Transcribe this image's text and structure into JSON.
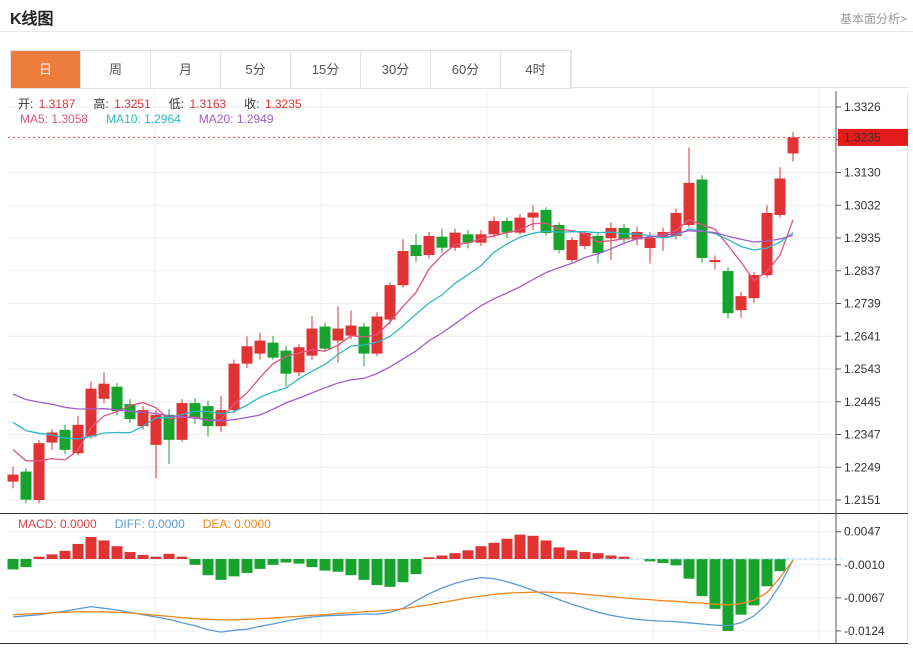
{
  "header": {
    "title": "K线图",
    "link": "基本面分析>"
  },
  "tabs": {
    "items": [
      "日",
      "周",
      "月",
      "5分",
      "15分",
      "30分",
      "60分",
      "4时"
    ],
    "selected_index": 0
  },
  "info": {
    "ohlc": [
      {
        "label": "开:",
        "value": "1.3187"
      },
      {
        "label": "高:",
        "value": "1.3251"
      },
      {
        "label": "低:",
        "value": "1.3163"
      },
      {
        "label": "收:",
        "value": "1.3235"
      }
    ],
    "ma": [
      {
        "label": "MA5:",
        "value": "1.3058",
        "color": "#e0547e"
      },
      {
        "label": "MA10:",
        "value": "1.2964",
        "color": "#2eb8c5"
      },
      {
        "label": "MA20:",
        "value": "1.2949",
        "color": "#a05dc8"
      }
    ]
  },
  "colors": {
    "up": "#e13333",
    "down": "#17a32d",
    "ma5": "#e0547e",
    "ma10": "#2eb8c5",
    "ma20": "#a05dc8",
    "diff": "#5b9bd5",
    "dea": "#f0861e",
    "macd_label": "#d94545",
    "tab_accent": "#ee7d3d",
    "current_price_bg": "#e31b1b",
    "grid": "#ededed",
    "axis": "#555555",
    "dotted_current": "#e34444",
    "zero_dash": "#8fd3e8"
  },
  "chart_data": {
    "type": "candlestick_with_macd",
    "title": "K线图",
    "legend": [
      "MA5",
      "MA10",
      "MA20"
    ],
    "ma_periods": [
      5,
      10,
      20
    ],
    "price_axis": {
      "tick_labels": [
        "1.3326",
        null,
        "1.3130",
        "1.3032",
        "1.2935",
        "1.2837",
        "1.2739",
        "1.2641",
        "1.2543",
        "1.2445",
        "1.2347",
        "1.2249",
        "1.2151"
      ],
      "tick_step": 0.0098,
      "top_value": 1.3326,
      "current_price": "1.3235"
    },
    "candles": [
      [
        1.2205,
        1.225,
        1.2185,
        1.2226
      ],
      [
        1.2235,
        1.2245,
        1.214,
        1.2151
      ],
      [
        1.215,
        1.233,
        1.214,
        1.232
      ],
      [
        1.2322,
        1.2362,
        1.23,
        1.2352
      ],
      [
        1.236,
        1.2375,
        1.2288,
        1.23
      ],
      [
        1.229,
        1.2402,
        1.2283,
        1.2375
      ],
      [
        1.234,
        1.2505,
        1.2333,
        1.2483
      ],
      [
        1.2453,
        1.2532,
        1.244,
        1.2498
      ],
      [
        1.2489,
        1.25,
        1.2404,
        1.2416
      ],
      [
        1.2437,
        1.2452,
        1.238,
        1.2392
      ],
      [
        1.2371,
        1.2432,
        1.236,
        1.2419
      ],
      [
        1.2315,
        1.242,
        1.2215,
        1.2405
      ],
      [
        1.2405,
        1.2422,
        1.2258,
        1.233
      ],
      [
        1.233,
        1.2452,
        1.2324,
        1.244
      ],
      [
        1.244,
        1.2455,
        1.2378,
        1.2395
      ],
      [
        1.2431,
        1.2447,
        1.234,
        1.2371
      ],
      [
        1.2371,
        1.2462,
        1.2354,
        1.2419
      ],
      [
        1.2419,
        1.257,
        1.241,
        1.2558
      ],
      [
        1.2558,
        1.264,
        1.2545,
        1.261
      ],
      [
        1.2588,
        1.265,
        1.257,
        1.2627
      ],
      [
        1.2621,
        1.2641,
        1.257,
        1.2576
      ],
      [
        1.2597,
        1.2612,
        1.249,
        1.2528
      ],
      [
        1.2532,
        1.2616,
        1.252,
        1.2607
      ],
      [
        1.2582,
        1.27,
        1.257,
        1.2663
      ],
      [
        1.2669,
        1.2681,
        1.2595,
        1.2603
      ],
      [
        1.2627,
        1.273,
        1.256,
        1.2663
      ],
      [
        1.2642,
        1.2717,
        1.263,
        1.2672
      ],
      [
        1.2669,
        1.268,
        1.255,
        1.2588
      ],
      [
        1.2588,
        1.2712,
        1.258,
        1.2699
      ],
      [
        1.269,
        1.2802,
        1.2675,
        1.2793
      ],
      [
        1.2793,
        1.293,
        1.2785,
        1.2895
      ],
      [
        1.2913,
        1.2946,
        1.2862,
        1.288
      ],
      [
        1.2883,
        1.2952,
        1.2872,
        1.294
      ],
      [
        1.2938,
        1.2962,
        1.289,
        1.2905
      ],
      [
        1.2905,
        1.2962,
        1.2895,
        1.295
      ],
      [
        1.2945,
        1.2958,
        1.2903,
        1.292
      ],
      [
        1.292,
        1.2958,
        1.291,
        1.2945
      ],
      [
        1.2945,
        1.2999,
        1.2935,
        1.2985
      ],
      [
        1.2985,
        1.2996,
        1.2934,
        1.295
      ],
      [
        1.295,
        1.3006,
        1.2944,
        1.2995
      ],
      [
        1.2995,
        1.3032,
        1.2958,
        1.301
      ],
      [
        1.3018,
        1.3026,
        1.294,
        1.2949
      ],
      [
        1.2973,
        1.2981,
        1.2888,
        1.2898
      ],
      [
        1.2868,
        1.2936,
        1.286,
        1.2928
      ],
      [
        1.291,
        1.2956,
        1.29,
        1.2949
      ],
      [
        1.294,
        1.2951,
        1.2858,
        1.2889
      ],
      [
        1.2933,
        1.2981,
        1.2868,
        1.2964
      ],
      [
        1.2964,
        1.2976,
        1.292,
        1.293
      ],
      [
        1.293,
        1.2968,
        1.2912,
        1.2952
      ],
      [
        1.2904,
        1.2952,
        1.2858,
        1.2934
      ],
      [
        1.2934,
        1.2965,
        1.2895,
        1.2952
      ],
      [
        1.294,
        1.3022,
        1.293,
        1.3009
      ],
      [
        1.2973,
        1.3205,
        1.2965,
        1.3099
      ],
      [
        1.3109,
        1.3122,
        1.286,
        1.2874
      ],
      [
        1.2862,
        1.2882,
        1.284,
        1.2868
      ],
      [
        1.2835,
        1.2846,
        1.2693,
        1.2709
      ],
      [
        1.2718,
        1.2772,
        1.2695,
        1.276
      ],
      [
        1.2754,
        1.2832,
        1.274,
        1.2823
      ],
      [
        1.2823,
        1.3032,
        1.2815,
        1.3009
      ],
      [
        1.3003,
        1.3146,
        1.2995,
        1.3112
      ],
      [
        1.3187,
        1.3251,
        1.3163,
        1.3235
      ]
    ],
    "macd": {
      "labels": [
        {
          "label": "MACD:",
          "value": "0.0000",
          "color": "#d94545"
        },
        {
          "label": "DIFF:",
          "value": "0.0000",
          "color": "#5b9bd5"
        },
        {
          "label": "DEA:",
          "value": "0.0000",
          "color": "#f0861e"
        }
      ],
      "axis_ticks": [
        {
          "label": "0.0047",
          "v": 47
        },
        {
          "label": "-0.0010",
          "v": -10
        },
        {
          "label": "-0.0067",
          "v": -67
        },
        {
          "label": "-0.0124",
          "v": -124
        }
      ],
      "unit": 0.0001,
      "hist": [
        -18,
        -14,
        4,
        8,
        14,
        26,
        38,
        32,
        22,
        12,
        7,
        4,
        9,
        4,
        -10,
        -28,
        -36,
        -30,
        -24,
        -17,
        -10,
        -6,
        -8,
        -14,
        -20,
        -22,
        -28,
        -36,
        -45,
        -48,
        -40,
        -26,
        3,
        6,
        10,
        15,
        22,
        28,
        35,
        42,
        40,
        32,
        20,
        15,
        12,
        10,
        6,
        4,
        0,
        -4,
        -7,
        -11,
        -34,
        -64,
        -86,
        -124,
        -96,
        -80,
        -47,
        -21,
        0
      ],
      "diff": [
        -100,
        -98,
        -96,
        -93,
        -90,
        -86,
        -82,
        -85,
        -88,
        -92,
        -96,
        -100,
        -104,
        -110,
        -115,
        -122,
        -126,
        -123,
        -121,
        -116,
        -112,
        -107,
        -103,
        -100,
        -98,
        -97,
        -96,
        -95,
        -95,
        -92,
        -85,
        -72,
        -60,
        -50,
        -42,
        -36,
        -32,
        -34,
        -39,
        -46,
        -54,
        -62,
        -70,
        -78,
        -85,
        -92,
        -97,
        -101,
        -104,
        -106,
        -107,
        -108,
        -110,
        -112,
        -114,
        -115,
        -110,
        -98,
        -78,
        -45,
        -2
      ],
      "dea": [
        -96,
        -95,
        -94,
        -93,
        -92,
        -91,
        -91,
        -91,
        -92,
        -93,
        -95,
        -97,
        -99,
        -101,
        -103,
        -104,
        -105,
        -105,
        -104,
        -103,
        -102,
        -100,
        -99,
        -97,
        -96,
        -94,
        -93,
        -91,
        -90,
        -88,
        -86,
        -82,
        -79,
        -75,
        -71,
        -67,
        -64,
        -61,
        -59,
        -58,
        -57,
        -57,
        -58,
        -59,
        -61,
        -63,
        -65,
        -67,
        -69,
        -70,
        -72,
        -73,
        -75,
        -76,
        -78,
        -79,
        -77,
        -71,
        -58,
        -32,
        -2
      ]
    }
  }
}
